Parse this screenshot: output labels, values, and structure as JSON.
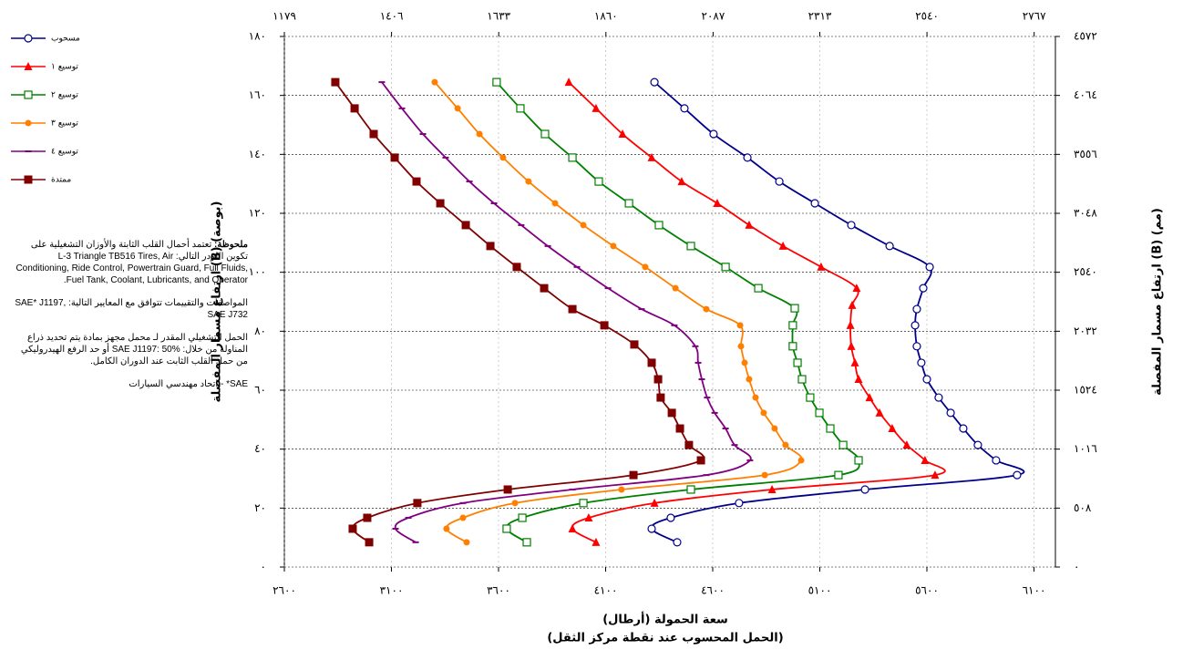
{
  "chart_data": {
    "type": "line",
    "xlabel": "سعة الحمولة (أرطال)",
    "xlabel2": "(الحمل المحسوب عند نقطة مركز الثقل)",
    "ylabel": "ارتفاع مسمار المفصلة (B) (بوصة)",
    "y2label": "ارتفاع مسمار المفصلة (B) (مم)",
    "xlim": [
      2600,
      6200
    ],
    "xticks": [
      {
        "value": 2600,
        "label": "٢٦٠٠"
      },
      {
        "value": 3100,
        "label": "٣١٠٠"
      },
      {
        "value": 3600,
        "label": "٣٦٠٠"
      },
      {
        "value": 4100,
        "label": "٤١٠٠"
      },
      {
        "value": 4600,
        "label": "٤٦٠٠"
      },
      {
        "value": 5100,
        "label": "٥١٠٠"
      },
      {
        "value": 5600,
        "label": "٥٦٠٠"
      },
      {
        "value": 6100,
        "label": "٦١٠٠"
      }
    ],
    "x2lim": [
      1179,
      2812
    ],
    "x2ticks": [
      {
        "value": 1179,
        "label": "١١٧٩"
      },
      {
        "value": 1406,
        "label": "١٤٠٦"
      },
      {
        "value": 1633,
        "label": "١٦٣٣"
      },
      {
        "value": 1860,
        "label": "١٨٦٠"
      },
      {
        "value": 2087,
        "label": "٢٠٨٧"
      },
      {
        "value": 2313,
        "label": "٢٣١٣"
      },
      {
        "value": 2540,
        "label": "٢٥٤٠"
      },
      {
        "value": 2767,
        "label": "٢٧٦٧"
      }
    ],
    "ylim": [
      0,
      180
    ],
    "yticks": [
      {
        "value": 0,
        "label": "٠"
      },
      {
        "value": 20,
        "label": "٢٠"
      },
      {
        "value": 40,
        "label": "٤٠"
      },
      {
        "value": 60,
        "label": "٦٠"
      },
      {
        "value": 80,
        "label": "٨٠"
      },
      {
        "value": 100,
        "label": "١٠٠"
      },
      {
        "value": 120,
        "label": "١٢٠"
      },
      {
        "value": 140,
        "label": "١٤٠"
      },
      {
        "value": 160,
        "label": "١٦٠"
      },
      {
        "value": 180,
        "label": "١٨٠"
      }
    ],
    "y2lim": [
      0,
      4572
    ],
    "y2ticks": [
      {
        "value": 0,
        "label": "٠"
      },
      {
        "value": 508,
        "label": "٥٠٨"
      },
      {
        "value": 1016,
        "label": "١٠١٦"
      },
      {
        "value": 1524,
        "label": "١٥٢٤"
      },
      {
        "value": 2032,
        "label": "٢٠٣٢"
      },
      {
        "value": 2540,
        "label": "٢٥٤٠"
      },
      {
        "value": 3048,
        "label": "٣٠٤٨"
      },
      {
        "value": 3556,
        "label": "٣٥٥٦"
      },
      {
        "value": 4064,
        "label": "٤٠٦٤"
      },
      {
        "value": 4572,
        "label": "٤٥٧٢"
      }
    ],
    "grid": true,
    "legend": "left",
    "series": [
      {
        "name": "مسحوب",
        "color": "#00008b",
        "marker": "circle-open",
        "x": [
          4328,
          4468,
          4604,
          4762,
          4911,
          5077,
          5247,
          5426,
          5613,
          5583,
          5553,
          5545,
          5553,
          5574,
          5600,
          5655,
          5711,
          5770,
          5838,
          5923,
          6021,
          5311,
          4723,
          4404,
          4315,
          4434
        ],
        "values": [
          164.5,
          155.6,
          146.9,
          138.9,
          130.8,
          123.4,
          116,
          108.9,
          101.8,
          94.6,
          87.5,
          82,
          74.9,
          69.3,
          63.7,
          57.5,
          52.3,
          47,
          41.4,
          36.2,
          31.2,
          26.3,
          21.7,
          16.7,
          13,
          8.4
        ]
      },
      {
        "name": "توسيع ١",
        "color": "#ff0000",
        "marker": "triangle",
        "x": [
          3928,
          4055,
          4179,
          4315,
          4455,
          4621,
          4770,
          4928,
          5106,
          5272,
          5251,
          5243,
          5247,
          5264,
          5281,
          5332,
          5379,
          5438,
          5506,
          5591,
          5638,
          4877,
          4328,
          4021,
          3945,
          4055
        ],
        "values": [
          164.5,
          155.6,
          146.9,
          138.9,
          130.8,
          123.4,
          116,
          108.9,
          101.8,
          94.6,
          88.8,
          82,
          74.9,
          69.3,
          63.7,
          57.5,
          52.3,
          47,
          41.4,
          36.2,
          31.2,
          26.3,
          21.7,
          16.7,
          13,
          8.4
        ]
      },
      {
        "name": "توسيع ٢",
        "color": "#008000",
        "marker": "square-open",
        "x": [
          3591,
          3702,
          3817,
          3945,
          4068,
          4209,
          4349,
          4498,
          4660,
          4813,
          4983,
          4974,
          4974,
          4996,
          5017,
          5055,
          5098,
          5149,
          5209,
          5281,
          5187,
          4498,
          3996,
          3711,
          3638,
          3732
        ],
        "values": [
          164.5,
          155.6,
          146.9,
          138.9,
          130.8,
          123.4,
          116,
          108.9,
          101.8,
          94.6,
          87.8,
          82,
          74.9,
          69.3,
          63.7,
          57.5,
          52.3,
          47,
          41.4,
          36.2,
          31.2,
          26.3,
          21.7,
          16.7,
          13,
          8.4
        ]
      },
      {
        "name": "توسيع ٣",
        "color": "#ff7f00",
        "marker": "circle",
        "x": [
          3302,
          3409,
          3511,
          3621,
          3740,
          3864,
          3996,
          4136,
          4285,
          4426,
          4570,
          4728,
          4732,
          4749,
          4770,
          4800,
          4838,
          4889,
          4940,
          5013,
          4843,
          4174,
          3677,
          3434,
          3357,
          3451
        ],
        "values": [
          164.5,
          155.6,
          146.9,
          138.9,
          130.8,
          123.4,
          116,
          108.9,
          101.8,
          94.6,
          87.5,
          82,
          74.9,
          69.3,
          63.7,
          57.5,
          52.3,
          47,
          41.4,
          36.2,
          31.2,
          26.3,
          21.7,
          16.7,
          13,
          8.4
        ]
      },
      {
        "name": "توسيع ٤",
        "color": "#800080",
        "marker": "dash",
        "x": [
          3055,
          3149,
          3247,
          3353,
          3464,
          3579,
          3706,
          3830,
          3966,
          4111,
          4268,
          4421,
          4519,
          4532,
          4549,
          4574,
          4609,
          4660,
          4702,
          4774,
          4570,
          3945,
          3434,
          3179,
          3119,
          3213
        ],
        "values": [
          164.5,
          155.6,
          146.9,
          138.9,
          130.8,
          123.4,
          116,
          108.9,
          101.8,
          94.6,
          87.5,
          82,
          74.9,
          69.3,
          63.7,
          57.5,
          52.3,
          47,
          41.4,
          36.2,
          31.2,
          26.3,
          21.7,
          16.7,
          13,
          8.4
        ]
      },
      {
        "name": "ممتدة",
        "color": "#800000",
        "marker": "square",
        "x": [
          2838,
          2928,
          3017,
          3115,
          3217,
          3328,
          3447,
          3562,
          3685,
          3813,
          3945,
          4094,
          4234,
          4315,
          4345,
          4357,
          4409,
          4447,
          4489,
          4545,
          4230,
          3643,
          3221,
          2987,
          2919,
          2996
        ],
        "values": [
          164.5,
          155.6,
          146.9,
          138.9,
          130.8,
          123.4,
          116,
          108.9,
          101.8,
          94.6,
          87.5,
          82,
          75.5,
          69.3,
          63.7,
          57.5,
          52.3,
          47,
          41.4,
          36.2,
          31.2,
          26.3,
          21.7,
          16.7,
          13,
          8.4
        ]
      }
    ],
    "note_heading": "ملحوظة:",
    "notes": [
      "تعتمد أحمال القلب الثابتة والأوزان التشغيلية على تكوين اللودر التالي: L-3 Triangle TB516 Tires, Air Conditioning, Ride Control, Powertrain Guard, Full Fluids, Fuel Tank, Coolant, Lubricants, and Operator.",
      "المواصفات والتقييمات تتوافق مع المعايير التالية: SAE* J1197, SAE J732",
      "الحمل التشغيلي المقدر لـ محمل مجهز بمادة يتم تحديد ذراع المناولة من خلال: SAE J1197: 50% أو حد الرفع الهيدروليكي من حمل القلب الثابت عند الدوران الكامل.",
      "SAE* - اتحاد مهندسي السيارات"
    ]
  }
}
